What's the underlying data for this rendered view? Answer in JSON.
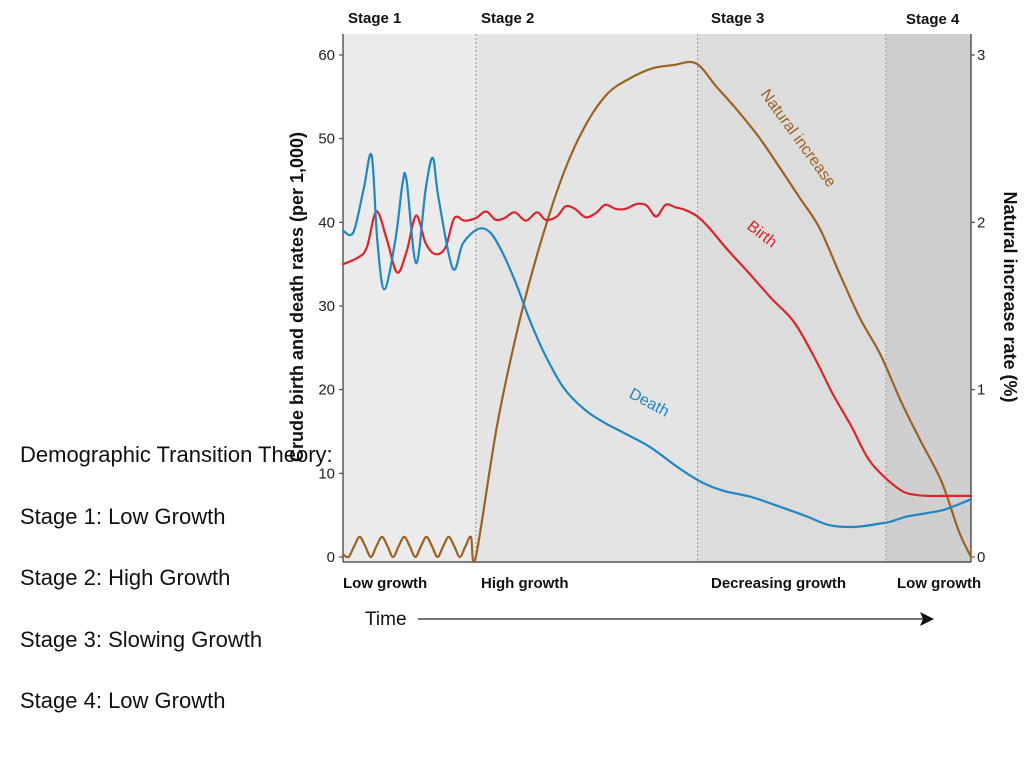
{
  "slide": {
    "title": "Demographic Transition Theory:",
    "lines": [
      "Stage 1:  Low Growth",
      "Stage 2:  High Growth",
      "Stage 3:  Slowing Growth",
      "Stage 4:  Low Growth"
    ]
  },
  "chart_data": {
    "type": "line",
    "stages": [
      "Stage 1",
      "Stage 2",
      "Stage 3",
      "Stage 4"
    ],
    "growth_labels": [
      "Low growth",
      "High growth",
      "Decreasing growth",
      "Low growth"
    ],
    "stage_bounds": [
      0,
      16.7,
      44.6,
      68.3,
      79
    ],
    "stage_colors": [
      "#ebebeb",
      "#e4e4e4",
      "#dcdcdc",
      "#cfcfcf"
    ],
    "ylabel": "Crude birth and death rates (per 1,000)",
    "y2label": "Natural increase rate (%)",
    "xlabel": "Time",
    "ylim": [
      0,
      60
    ],
    "y_ticks": [
      0,
      10,
      20,
      30,
      40,
      50,
      60
    ],
    "y2lim": [
      0,
      3
    ],
    "y2_ticks": [
      0,
      1,
      2,
      3
    ],
    "xlim": [
      0,
      79
    ],
    "series": [
      {
        "name": "Birth",
        "axis": "left",
        "color": "#d9262c",
        "x": [
          0,
          1.9,
          3.0,
          4.2,
          5.5,
          6.8,
          8.0,
          9.2,
          10.4,
          11.6,
          12.9,
          14.0,
          15.3,
          16.7,
          18.0,
          19.2,
          20.3,
          21.6,
          23.0,
          24.4,
          25.5,
          26.9,
          28.0,
          29.2,
          30.5,
          31.8,
          33.0,
          34.3,
          35.5,
          37.0,
          38.2,
          39.4,
          40.6,
          41.8,
          43.0,
          44.6,
          46.0,
          48.4,
          51.0,
          53.9,
          56.8,
          59.5,
          61.6,
          63.9,
          66.1,
          68.3,
          70.5,
          72.2,
          73.7,
          75.2,
          76.6,
          78.0,
          79.0
        ],
        "y": [
          35,
          35.8,
          37,
          41.3,
          38,
          34,
          36.5,
          40.8,
          37.5,
          36.2,
          37,
          40.5,
          40.2,
          40.5,
          41.3,
          40.3,
          40.5,
          41.2,
          40.2,
          41.2,
          40.3,
          40.7,
          41.9,
          41.6,
          40.6,
          41.1,
          42.1,
          41.6,
          41.6,
          42.2,
          42,
          40.7,
          42.1,
          41.8,
          41.5,
          40.7,
          39.4,
          36.7,
          34,
          30.9,
          28,
          23.5,
          19.5,
          15.7,
          11.7,
          9.4,
          7.8,
          7.4,
          7.3,
          7.3,
          7.3,
          7.3,
          7.3
        ]
      },
      {
        "name": "Death",
        "axis": "left",
        "color": "#1f87c3",
        "x": [
          0,
          1.3,
          2.6,
          3.6,
          4.3,
          5.2,
          6.6,
          7.5,
          8.0,
          9.2,
          10.4,
          11.3,
          12.0,
          13.8,
          15.1,
          17.0,
          18.5,
          20.0,
          21.8,
          23.5,
          25.3,
          27.7,
          30.3,
          32.8,
          35.4,
          38.7,
          42.3,
          45.2,
          47.9,
          51.3,
          54.7,
          58.2,
          61.2,
          64.4,
          67.6,
          68.8,
          70.8,
          73.2,
          75.8,
          79.0
        ],
        "y": [
          39,
          38.8,
          44,
          48,
          38,
          32,
          38,
          44.7,
          45,
          35.1,
          44,
          47.7,
          43,
          34.5,
          37.5,
          39.2,
          38.8,
          36.5,
          32.6,
          28.3,
          24.4,
          20.3,
          17.7,
          16.1,
          14.8,
          13.1,
          10.6,
          8.9,
          7.9,
          7.2,
          6.1,
          4.9,
          3.8,
          3.6,
          4,
          4.2,
          4.8,
          5.2,
          5.7,
          6.9
        ]
      },
      {
        "name": "Natural increase",
        "axis": "right",
        "color": "#9b6323",
        "x": [
          0,
          0.7,
          1.4,
          2.1,
          2.8,
          3.5,
          4.2,
          4.9,
          5.6,
          6.3,
          7.0,
          7.7,
          8.4,
          9.1,
          9.8,
          10.5,
          11.2,
          11.9,
          12.6,
          13.3,
          14.0,
          14.7,
          15.4,
          16.1,
          16.7,
          19.4,
          22.2,
          25.0,
          27.8,
          30.5,
          33.3,
          36.1,
          38.9,
          41.6,
          44.4,
          47.0,
          49.6,
          52.3,
          54.9,
          57.4,
          59.9,
          62.5,
          65.0,
          67.6,
          70.2,
          72.7,
          75.3,
          77.5,
          79.0
        ],
        "y": [
          0.016,
          0,
          0.064,
          0.12,
          0.064,
          0,
          0.064,
          0.12,
          0.064,
          0,
          0.064,
          0.12,
          0.064,
          0,
          0.064,
          0.12,
          0.064,
          0,
          0.064,
          0.12,
          0.064,
          0,
          0.064,
          0.12,
          0,
          0.79,
          1.41,
          1.9,
          2.3,
          2.58,
          2.77,
          2.86,
          2.92,
          2.94,
          2.95,
          2.81,
          2.67,
          2.51,
          2.33,
          2.15,
          1.97,
          1.69,
          1.43,
          1.21,
          0.93,
          0.69,
          0.45,
          0.15,
          0
        ]
      }
    ]
  }
}
